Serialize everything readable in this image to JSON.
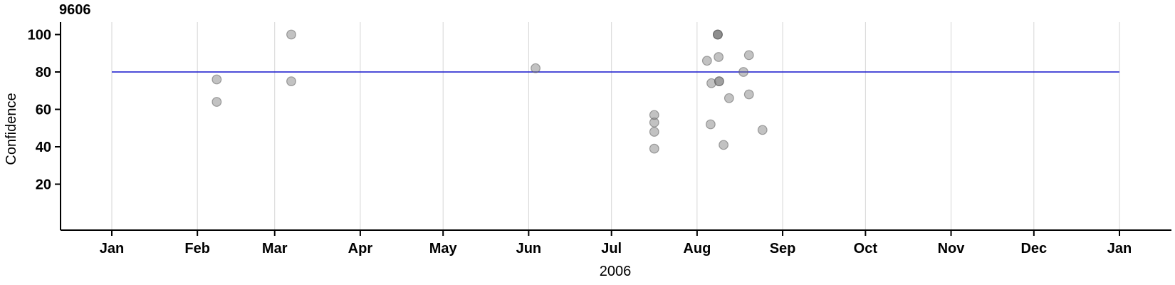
{
  "colors": {
    "background": "#ffffff",
    "reference_line": "#1414cc",
    "grid_line": "#d6d6d6",
    "axis": "#000000",
    "point_fill": "#787878",
    "point_stroke": "#5f5f5f"
  },
  "chart_data": {
    "type": "scatter",
    "title": "9606",
    "xlabel": "2006",
    "ylabel": "Confidence",
    "x_axis": {
      "kind": "date",
      "tick_labels": [
        "Jan",
        "Feb",
        "Mar",
        "Apr",
        "May",
        "Jun",
        "Jul",
        "Aug",
        "Sep",
        "Oct",
        "Nov",
        "Dec",
        "Jan"
      ],
      "tick_day_of_year": [
        0,
        31,
        59,
        90,
        120,
        151,
        181,
        212,
        243,
        273,
        304,
        334,
        365
      ],
      "domain_days": [
        0,
        365
      ],
      "year": "2006"
    },
    "y_axis": {
      "label": "Confidence",
      "ticks": [
        20,
        40,
        60,
        80,
        100
      ],
      "range": [
        0,
        105
      ]
    },
    "grid": {
      "vertical_monthly": true,
      "horizontal": false
    },
    "legend": "none",
    "reference_line": {
      "value": 80
    },
    "points": [
      {
        "date": "2006-02-08",
        "day_of_year": 38,
        "confidence": 76
      },
      {
        "date": "2006-02-08",
        "day_of_year": 38,
        "confidence": 64
      },
      {
        "date": "2006-03-07",
        "day_of_year": 65,
        "confidence": 100
      },
      {
        "date": "2006-03-07",
        "day_of_year": 65,
        "confidence": 75
      },
      {
        "date": "2006-06-03",
        "day_of_year": 153.5,
        "confidence": 82
      },
      {
        "date": "2006-07-16",
        "day_of_year": 196.5,
        "confidence": 57
      },
      {
        "date": "2006-07-16",
        "day_of_year": 196.5,
        "confidence": 53
      },
      {
        "date": "2006-07-16",
        "day_of_year": 196.5,
        "confidence": 48
      },
      {
        "date": "2006-07-16",
        "day_of_year": 196.5,
        "confidence": 39
      },
      {
        "date": "2006-08-04",
        "day_of_year": 215.6,
        "confidence": 86
      },
      {
        "date": "2006-08-05",
        "day_of_year": 216.9,
        "confidence": 52
      },
      {
        "date": "2006-08-06",
        "day_of_year": 217.2,
        "confidence": 74
      },
      {
        "date": "2006-08-08",
        "day_of_year": 219.5,
        "confidence": 100
      },
      {
        "date": "2006-08-08",
        "day_of_year": 219.5,
        "confidence": 100
      },
      {
        "date": "2006-08-08",
        "day_of_year": 219.5,
        "confidence": 100
      },
      {
        "date": "2006-08-08",
        "day_of_year": 219.8,
        "confidence": 88
      },
      {
        "date": "2006-08-09",
        "day_of_year": 220.0,
        "confidence": 75
      },
      {
        "date": "2006-08-09",
        "day_of_year": 220.0,
        "confidence": 75
      },
      {
        "date": "2006-08-10",
        "day_of_year": 221.6,
        "confidence": 41
      },
      {
        "date": "2006-08-12",
        "day_of_year": 223.6,
        "confidence": 66
      },
      {
        "date": "2006-08-17",
        "day_of_year": 228.8,
        "confidence": 80
      },
      {
        "date": "2006-08-19",
        "day_of_year": 230.8,
        "confidence": 89
      },
      {
        "date": "2006-08-19",
        "day_of_year": 230.8,
        "confidence": 68
      },
      {
        "date": "2006-08-24",
        "day_of_year": 235.7,
        "confidence": 49
      }
    ]
  }
}
